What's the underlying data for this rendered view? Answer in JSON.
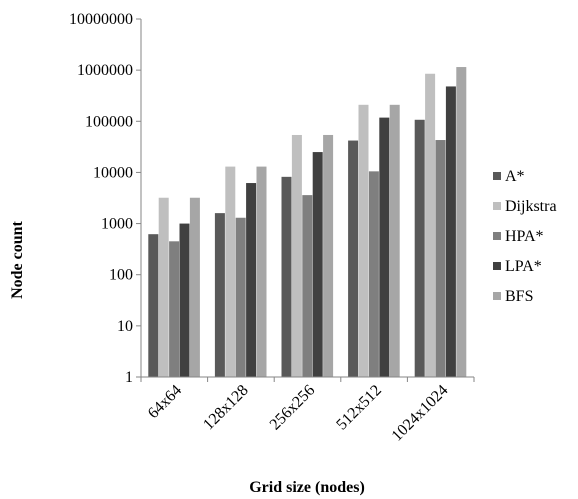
{
  "chart_data": {
    "type": "bar",
    "title": "",
    "xlabel": "Grid size (nodes)",
    "ylabel": "Node count",
    "yscale": "log",
    "ylim": [
      1,
      10000000
    ],
    "yticks": [
      1,
      10,
      100,
      1000,
      10000,
      100000,
      1000000,
      10000000
    ],
    "ytick_labels": [
      "1",
      "10",
      "100",
      "1000",
      "10000",
      "100000",
      "1000000",
      "10000000"
    ],
    "grid": false,
    "legend_position": "right",
    "categories": [
      "64x64",
      "128x128",
      "256x256",
      "512x512",
      "1024x1024"
    ],
    "series": [
      {
        "name": "A*",
        "color": "#595959",
        "values": [
          620,
          1600,
          8200,
          42000,
          107000
        ]
      },
      {
        "name": "Dijkstra",
        "color": "#bfbfbf",
        "values": [
          3200,
          13000,
          54000,
          210000,
          850000
        ]
      },
      {
        "name": "HPA*",
        "color": "#7f7f7f",
        "values": [
          450,
          1300,
          3600,
          10500,
          43000
        ]
      },
      {
        "name": "LPA*",
        "color": "#404040",
        "values": [
          1000,
          6200,
          25000,
          118000,
          480000
        ]
      },
      {
        "name": "BFS",
        "color": "#a6a6a6",
        "values": [
          3200,
          13000,
          54000,
          210000,
          1150000
        ]
      }
    ]
  }
}
